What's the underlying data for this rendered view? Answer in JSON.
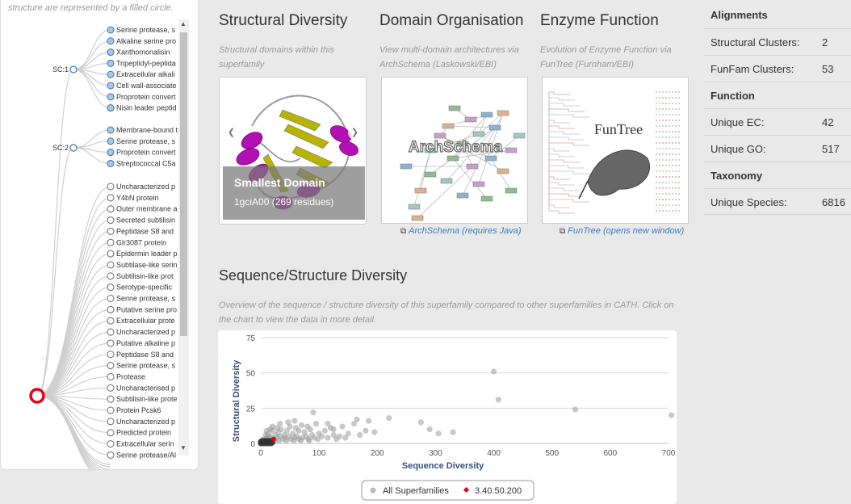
{
  "tree": {
    "note": "structure are represented by a filled circle.",
    "sc_nodes": [
      "SC:1",
      "SC:2"
    ],
    "sc1_leaves": [
      "Serine protease, s",
      "Alkaline serine pro",
      "Xanthomonalisin",
      "Tripeptidyl-peptida",
      "Extracellular alkali",
      "Cell wall-associate",
      "Proprotein convert",
      "Nisin leader peptid"
    ],
    "sc2_leaves": [
      "Membrane-bound t",
      "Serine protease, s",
      "Proprotein convert",
      "Streptococcal C5a"
    ],
    "other_leaves": [
      "Uncharacterized p",
      "Y4bN protein",
      "Outer membrane a",
      "Secreted subtilisin",
      "Peptidase S8 and",
      "Glr3087 protein",
      "Epidermin leader p",
      "Subtilase-like serin",
      "Subtilisin-like prot",
      "Serotype-specific",
      "Serine protease, s",
      "Putative serine pro",
      "Extracellular prote",
      "Uncharacterized p",
      "Putative alkaline p",
      "Peptidase S8 and",
      "Serine protease, s",
      "Protease",
      "Uncharacterised p",
      "Subtilisin-like prote",
      "Protein Pcsk6",
      "Uncharacterized p",
      "Predicted protein",
      "Extracellular serin",
      "Serine protease/Al"
    ],
    "colors": {
      "filled": "#a9c8e8",
      "stroke": "#4a7ab5",
      "root": "#e8001c",
      "branch": "#cfcfcf"
    }
  },
  "structural": {
    "title": "Structural Diversity",
    "desc": "Structural domains within this superfamily",
    "caption_title": "Smallest Domain",
    "caption_sub": "1gciA00 (269 residues)"
  },
  "domain": {
    "title": "Domain Organisation",
    "desc": "View multi-domain architectures via ArchSchema (Laskowski/EBI)",
    "image_label": "ArchSchema",
    "link": "ArchSchema (requires Java)"
  },
  "enzyme": {
    "title": "Enzyme Function",
    "desc": "Evolution of Enzyme Function via FunTree (Furnham/EBI)",
    "image_label": "FunTree",
    "link": "FunTree (opens new window)"
  },
  "seqstruct": {
    "title": "Sequence/Structure Diversity",
    "desc": "Overview of the sequence / structure diversity of this superfamily compared to other superfamilies in CATH. Click on the chart to view the data in more detail."
  },
  "chart_data": {
    "type": "scatter",
    "xlabel": "Sequence Diversity",
    "ylabel": "Structural Diversity",
    "xlim": [
      0,
      700
    ],
    "ylim": [
      0,
      75
    ],
    "x_ticks": [
      0,
      100,
      200,
      300,
      400,
      500,
      600,
      700
    ],
    "y_ticks": [
      0,
      25,
      50,
      75
    ],
    "grid": true,
    "legend_position": "bottom-center",
    "series": [
      {
        "name": "All Superfamilies",
        "color": "#9a9a9a",
        "points": [
          [
            400,
            51
          ],
          [
            408,
            31
          ],
          [
            540,
            24
          ],
          [
            705,
            20
          ],
          [
            220,
            18
          ],
          [
            275,
            15
          ],
          [
            185,
            16
          ],
          [
            165,
            17
          ],
          [
            160,
            14
          ],
          [
            90,
            22
          ],
          [
            290,
            10
          ],
          [
            305,
            7
          ],
          [
            330,
            8
          ],
          [
            120,
            11
          ],
          [
            140,
            12
          ],
          [
            110,
            9
          ],
          [
            95,
            14
          ],
          [
            100,
            7
          ],
          [
            85,
            10
          ],
          [
            70,
            13
          ],
          [
            75,
            8
          ],
          [
            60,
            11
          ],
          [
            55,
            7
          ],
          [
            50,
            12
          ],
          [
            45,
            9
          ],
          [
            40,
            6
          ],
          [
            35,
            10
          ],
          [
            30,
            8
          ],
          [
            25,
            6
          ],
          [
            20,
            9
          ],
          [
            15,
            5
          ],
          [
            12,
            7
          ],
          [
            10,
            4
          ],
          [
            8,
            6
          ],
          [
            5,
            3
          ],
          [
            3,
            2
          ],
          [
            2,
            1
          ],
          [
            1,
            0
          ],
          [
            0,
            0
          ],
          [
            4,
            1
          ],
          [
            6,
            2
          ],
          [
            9,
            3
          ],
          [
            14,
            3
          ],
          [
            18,
            4
          ],
          [
            22,
            3
          ],
          [
            28,
            4
          ],
          [
            33,
            5
          ],
          [
            38,
            3
          ],
          [
            42,
            4
          ],
          [
            48,
            5
          ],
          [
            52,
            3
          ],
          [
            58,
            4
          ],
          [
            62,
            5
          ],
          [
            66,
            3
          ],
          [
            72,
            4
          ],
          [
            78,
            5
          ],
          [
            82,
            3
          ],
          [
            88,
            6
          ],
          [
            92,
            4
          ],
          [
            98,
            3
          ],
          [
            105,
            5
          ],
          [
            115,
            4
          ],
          [
            125,
            6
          ],
          [
            135,
            5
          ],
          [
            150,
            7
          ],
          [
            170,
            6
          ],
          [
            180,
            9
          ],
          [
            195,
            8
          ],
          [
            130,
            3
          ],
          [
            145,
            4
          ],
          [
            65,
            9
          ],
          [
            80,
            12
          ],
          [
            115,
            14
          ],
          [
            125,
            10
          ],
          [
            28,
            11
          ],
          [
            33,
            14
          ],
          [
            47,
            15
          ],
          [
            58,
            16
          ],
          [
            20,
            12
          ],
          [
            10,
            9
          ],
          [
            16,
            10
          ],
          [
            24,
            2
          ],
          [
            31,
            2
          ],
          [
            44,
            2
          ],
          [
            57,
            2
          ],
          [
            69,
            2
          ],
          [
            83,
            2
          ]
        ]
      },
      {
        "name": "3.40.50.200",
        "color": "#e8001c",
        "points": [
          [
            22,
            3
          ]
        ]
      }
    ]
  },
  "stats": {
    "alignments_head": "Alignments",
    "function_head": "Function",
    "taxonomy_head": "Taxonomy",
    "rows": [
      {
        "label": "Structural Clusters:",
        "value": "2"
      },
      {
        "label": "FunFam Clusters:",
        "value": "53"
      },
      {
        "label": "Unique EC:",
        "value": "42"
      },
      {
        "label": "Unique GO:",
        "value": "517"
      },
      {
        "label": "Unique Species:",
        "value": "6816"
      }
    ]
  }
}
